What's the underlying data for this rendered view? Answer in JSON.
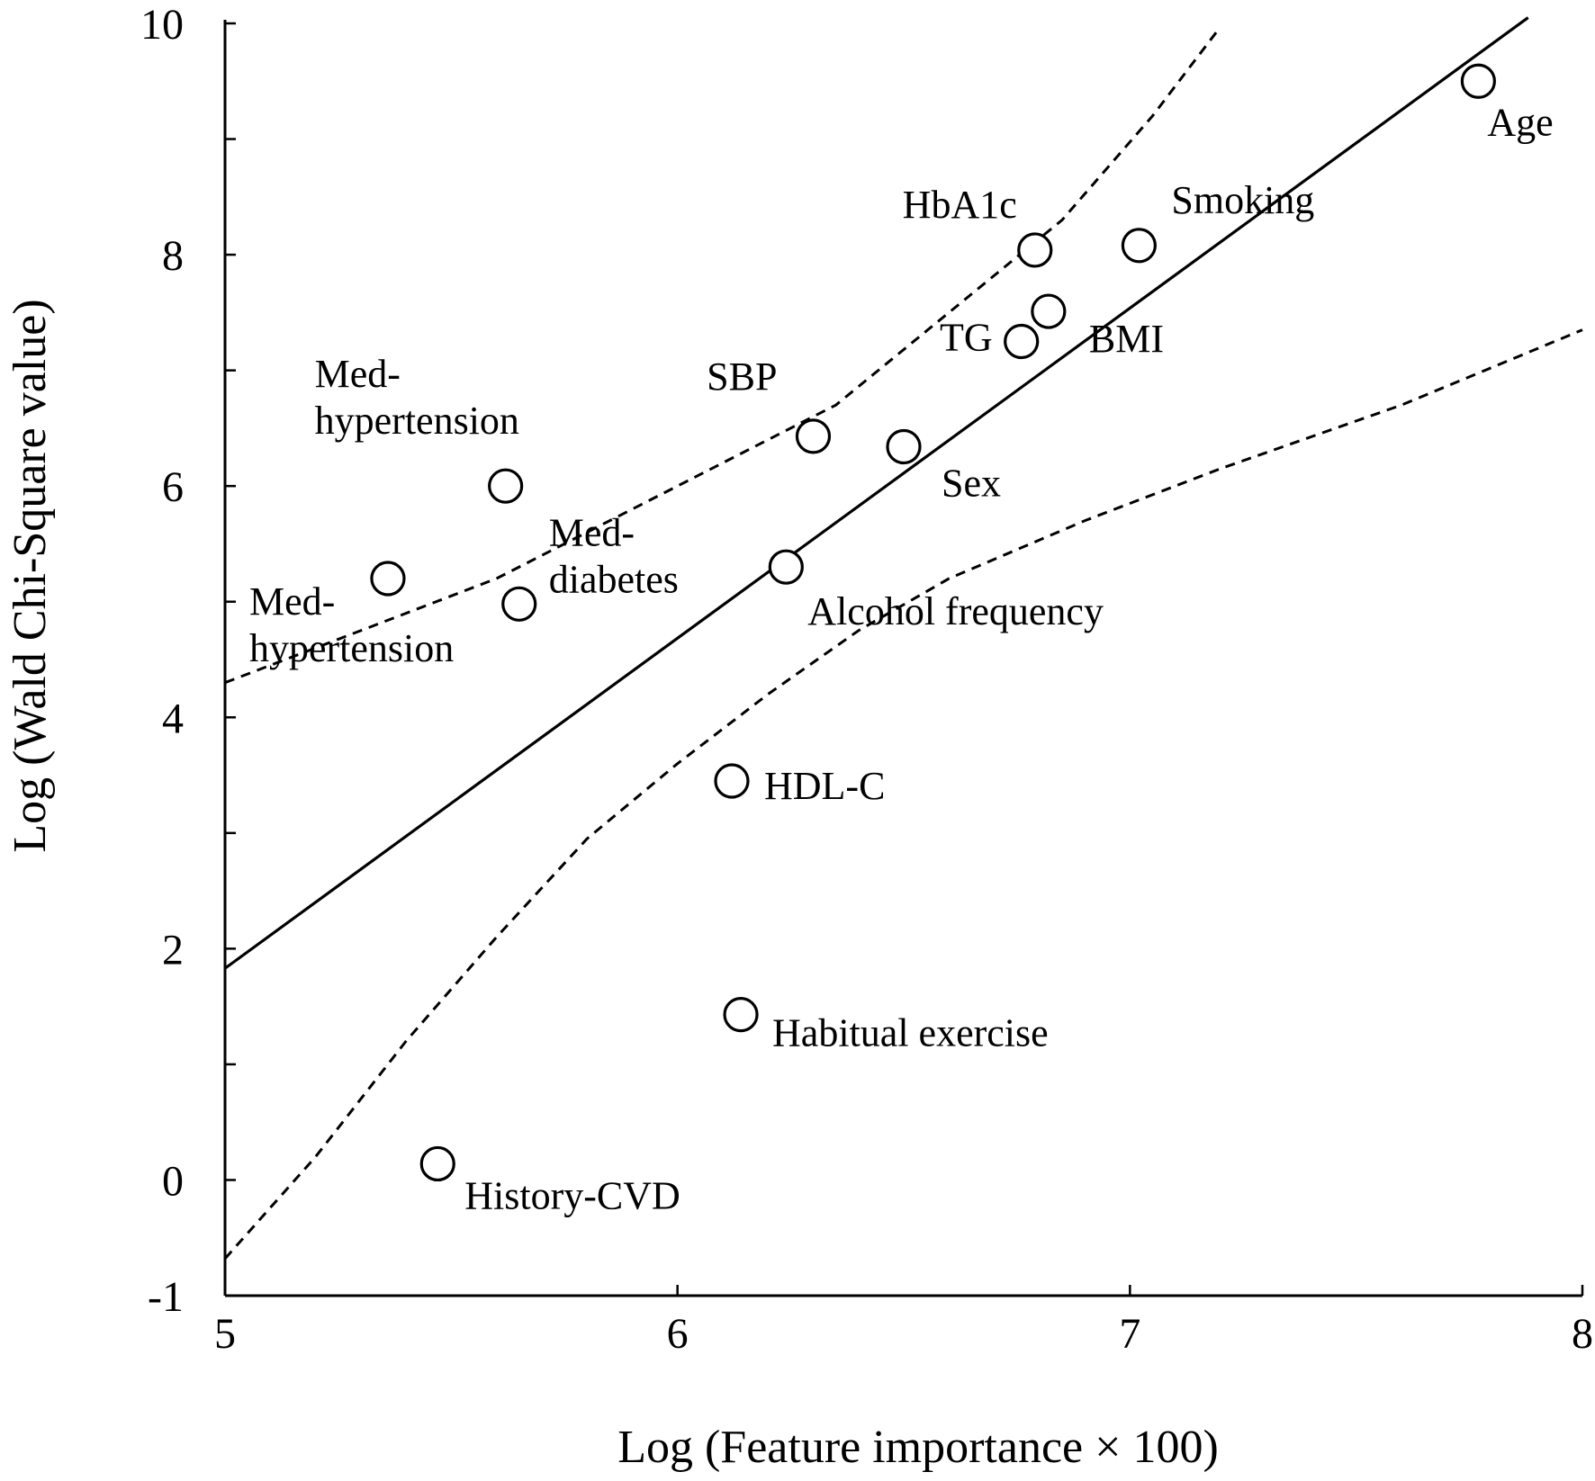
{
  "chart_data": {
    "type": "scatter",
    "title": "",
    "xlabel": "Log (Feature importance × 100)",
    "ylabel": "Log (Wald Chi-Square value)",
    "xlim": [
      5,
      8
    ],
    "ylim": [
      -1,
      10
    ],
    "x_ticks": [
      5,
      6,
      7,
      8
    ],
    "y_ticks": [
      -1,
      0,
      2,
      4,
      6,
      8,
      10
    ],
    "grid": false,
    "points": [
      {
        "label": "Age",
        "x": 7.77,
        "y": 9.5
      },
      {
        "label": "Smoking",
        "x": 7.02,
        "y": 8.08
      },
      {
        "label": "HbA1c",
        "x": 6.79,
        "y": 8.04
      },
      {
        "label": "BMI",
        "x": 6.82,
        "y": 7.51
      },
      {
        "label": "TG",
        "x": 6.76,
        "y": 7.25
      },
      {
        "label": "SBP",
        "x": 6.3,
        "y": 6.43
      },
      {
        "label": "Sex",
        "x": 6.5,
        "y": 6.34
      },
      {
        "label": "Med-hypertension",
        "x": 5.62,
        "y": 6.0
      },
      {
        "label": "Med-diabetes",
        "x": 5.65,
        "y": 4.98
      },
      {
        "label": "Med-hypertension",
        "x": 5.36,
        "y": 5.2
      },
      {
        "label": "Alcohol frequency",
        "x": 6.24,
        "y": 5.3
      },
      {
        "label": "HDL-C",
        "x": 6.12,
        "y": 3.45
      },
      {
        "label": "Habitual exercise",
        "x": 6.14,
        "y": 1.43
      },
      {
        "label": "History-CVD",
        "x": 5.47,
        "y": 0.14
      }
    ],
    "regression_line": {
      "name": "fit",
      "style": "solid",
      "x": [
        5.0,
        7.88
      ],
      "y": [
        1.83,
        10.05
      ]
    },
    "confidence_bands": [
      {
        "name": "upper",
        "style": "dashed",
        "x": [
          5.0,
          5.3,
          5.6,
          5.85,
          6.1,
          6.35,
          6.6,
          6.85,
          7.05,
          7.2
        ],
        "y": [
          4.3,
          4.75,
          5.2,
          5.7,
          6.2,
          6.7,
          7.5,
          8.3,
          9.2,
          9.97
        ]
      },
      {
        "name": "lower",
        "style": "dashed",
        "x": [
          5.0,
          5.2,
          5.4,
          5.6,
          5.8,
          6.0,
          6.2,
          6.4,
          6.6,
          6.9,
          7.2,
          7.6,
          8.0
        ],
        "y": [
          -0.68,
          0.2,
          1.2,
          2.1,
          2.95,
          3.6,
          4.2,
          4.75,
          5.2,
          5.7,
          6.15,
          6.7,
          7.35
        ]
      }
    ]
  }
}
